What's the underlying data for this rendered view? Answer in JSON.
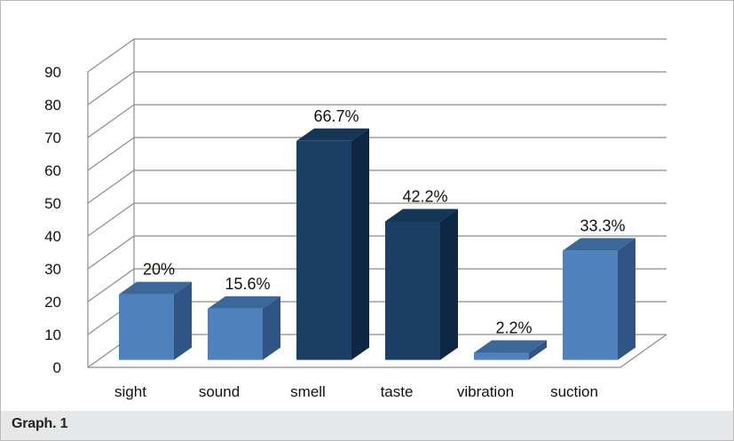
{
  "caption": "Graph. 1",
  "chart_data": {
    "type": "bar",
    "categories": [
      "sight",
      "sound",
      "smell",
      "taste",
      "vibration",
      "suction"
    ],
    "values": [
      20,
      15.6,
      66.7,
      42.2,
      2.2,
      33.3
    ],
    "data_labels": [
      "20%",
      "15.6%",
      "66.7%",
      "42.2%",
      "2.2%",
      "33.3%"
    ],
    "yticks": [
      "0",
      "10",
      "20",
      "30",
      "40",
      "50",
      "60",
      "70",
      "80",
      "90"
    ],
    "ylim": [
      0,
      90
    ],
    "grid": true,
    "legend": false,
    "style": "3d-column",
    "colors": {
      "light_front": "#4f81bd",
      "light_side": "#2f5486",
      "light_top": "#3c6799",
      "dark_front": "#1c3f66",
      "dark_side": "#0d2744",
      "dark_top": "#153556",
      "grid": "#8c8c8c"
    },
    "bar_color_scheme": [
      "light",
      "light",
      "dark",
      "dark",
      "light",
      "light"
    ]
  }
}
